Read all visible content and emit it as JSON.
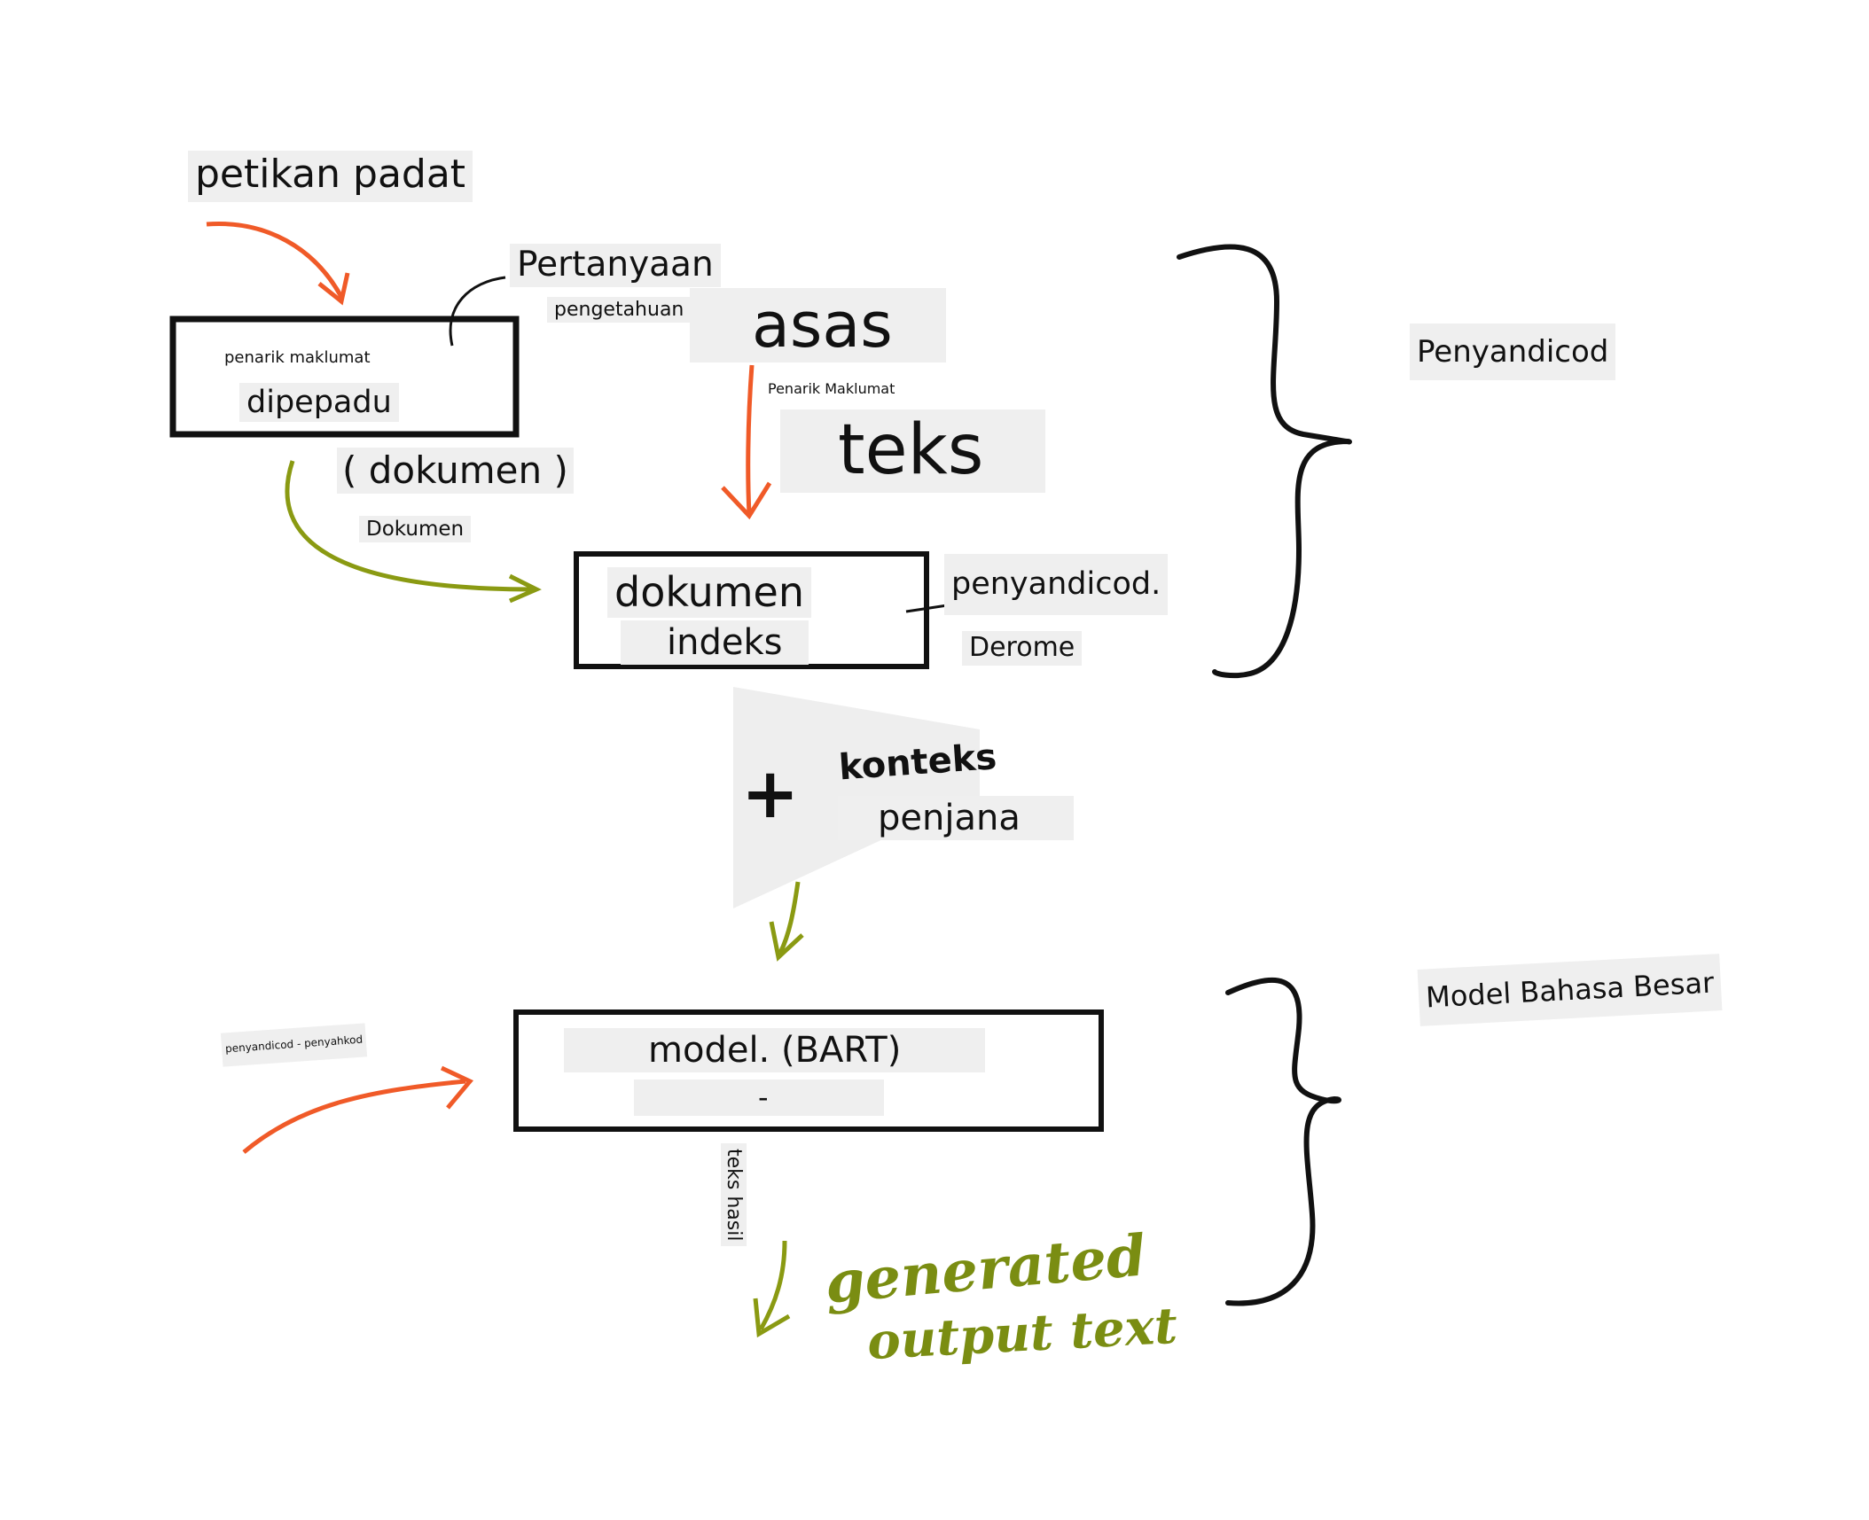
{
  "labels": {
    "petikan_padat": "petikan padat",
    "pertanyaan": "Pertanyaan",
    "pengetahuan": "pengetahuan",
    "asas": "asas",
    "penarik_maklumat_small": "Penarik Maklumat",
    "teks": "teks",
    "penarik_maklumat": "penarik maklumat",
    "dipepadu": "dipepadu",
    "dokumen_paren": "( dokumen )",
    "dokumen_small": "Dokumen",
    "dokumen": "dokumen",
    "indeks": "indeks",
    "penyandicod_side": "penyandicod.",
    "derome": "Derome",
    "penyandicod_right": "Penyandicod",
    "konteks": "konteks",
    "plus": "+",
    "penjana": "penjana",
    "model_bart": "model. (BART)",
    "dash": "-",
    "penyandicod_penyahkod": "penyandicod - penyahkod",
    "model_bahasa_besar": "Model Bahasa Besar",
    "teks_hasil": "teks hasil",
    "generated": "generated",
    "output_text": "output text"
  },
  "colors": {
    "orange_arrow": "#f05a28",
    "green_arrow": "#8a9a12",
    "handwriting_green": "#7a8d12",
    "box_stroke": "#111111",
    "label_bg": "#efefef",
    "funnel_fill": "#eeeeee"
  }
}
